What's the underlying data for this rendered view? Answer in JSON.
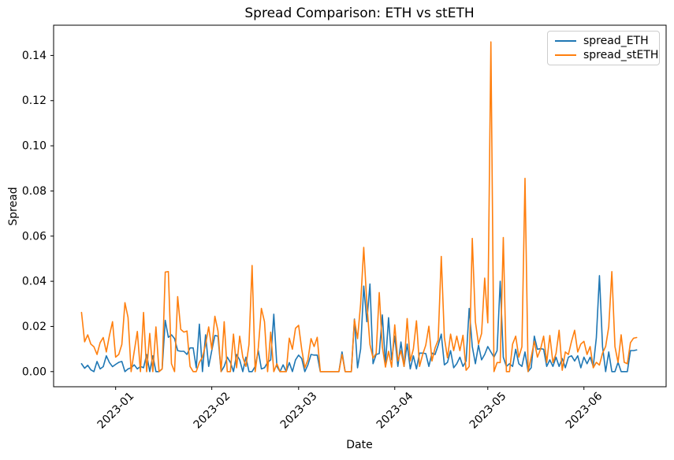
{
  "figure": {
    "background": "#ffffff",
    "spine_color": "#000000"
  },
  "chart_data": {
    "type": "line",
    "title": "Spread Comparison: ETH vs stETH",
    "xlabel": "Date",
    "ylabel": "Spread",
    "grid": false,
    "legend_position": "upper right",
    "start_date": "2022-12-21",
    "end_date": "2023-06-18",
    "x_unit": "day",
    "xlim_days": [
      -9.0,
      188.5
    ],
    "ylim": [
      -0.0067,
      0.1534
    ],
    "x_ticks": [
      {
        "label": "2023-01",
        "day": 11
      },
      {
        "label": "2023-02",
        "day": 42
      },
      {
        "label": "2023-03",
        "day": 70
      },
      {
        "label": "2023-04",
        "day": 101
      },
      {
        "label": "2023-05",
        "day": 131
      },
      {
        "label": "2023-06",
        "day": 162
      }
    ],
    "y_ticks": [
      {
        "label": "0.00",
        "value": 0.0
      },
      {
        "label": "0.02",
        "value": 0.02
      },
      {
        "label": "0.04",
        "value": 0.04
      },
      {
        "label": "0.06",
        "value": 0.06
      },
      {
        "label": "0.08",
        "value": 0.08
      },
      {
        "label": "0.10",
        "value": 0.1
      },
      {
        "label": "0.12",
        "value": 0.12
      },
      {
        "label": "0.14",
        "value": 0.14
      }
    ],
    "series": [
      {
        "name": "spread_ETH",
        "color": "#1f77b4",
        "values": [
          0.0035,
          0.0015,
          0.0028,
          0.0008,
          0.0,
          0.0045,
          0.0012,
          0.0022,
          0.007,
          0.004,
          0.0022,
          0.0032,
          0.0041,
          0.0045,
          0.0,
          0.0012,
          0.0017,
          0.003,
          0.0012,
          0.0023,
          0.0017,
          0.0076,
          0.0,
          0.007,
          0.0,
          0.0,
          0.0012,
          0.0227,
          0.0152,
          0.0163,
          0.0146,
          0.0093,
          0.009,
          0.009,
          0.0076,
          0.0105,
          0.0105,
          0.0017,
          0.021,
          0.0,
          0.0163,
          0.0023,
          0.0093,
          0.016,
          0.0157,
          0.0,
          0.0023,
          0.0064,
          0.0041,
          0.0,
          0.0076,
          0.0052,
          0.0,
          0.0064,
          0.0,
          0.0,
          0.0023,
          0.0093,
          0.0012,
          0.0017,
          0.0041,
          0.0052,
          0.0254,
          0.0023,
          0.0,
          0.003,
          0.0,
          0.004,
          0.0,
          0.0052,
          0.0073,
          0.0058,
          0.0,
          0.003,
          0.0076,
          0.0073,
          0.0073,
          0.0,
          0.0,
          0.0,
          0.0,
          0.0,
          0.0,
          0.0,
          0.0087,
          0.0,
          0.0,
          0.0,
          0.0233,
          0.0017,
          0.01,
          0.0379,
          0.0221,
          0.0388,
          0.0035,
          0.0076,
          0.008,
          0.0251,
          0.003,
          0.0239,
          0.0052,
          0.0157,
          0.0023,
          0.0131,
          0.0023,
          0.0122,
          0.0012,
          0.007,
          0.0012,
          0.0082,
          0.0082,
          0.008,
          0.0023,
          0.0082,
          0.0076,
          0.0117,
          0.0166,
          0.003,
          0.0041,
          0.0093,
          0.0017,
          0.0035,
          0.0064,
          0.0023,
          0.0047,
          0.028,
          0.0111,
          0.0035,
          0.0117,
          0.0052,
          0.0076,
          0.0111,
          0.0087,
          0.0064,
          0.0093,
          0.04,
          0.0064,
          0.0023,
          0.0035,
          0.0023,
          0.0099,
          0.0035,
          0.0023,
          0.0087,
          0.0,
          0.0017,
          0.0157,
          0.0099,
          0.0102,
          0.0099,
          0.0023,
          0.0052,
          0.0023,
          0.0064,
          0.0023,
          0.0058,
          0.0017,
          0.0064,
          0.007,
          0.0047,
          0.007,
          0.0017,
          0.0064,
          0.0035,
          0.0064,
          0.0023,
          0.015,
          0.0425,
          0.0111,
          0.0,
          0.0087,
          0.0,
          0.0,
          0.0041,
          0.0,
          0.0,
          0.0,
          0.0093,
          0.0093,
          0.0096
        ]
      },
      {
        "name": "spread_stETH",
        "color": "#ff7f0e",
        "values": [
          0.0262,
          0.0132,
          0.0163,
          0.0122,
          0.011,
          0.0076,
          0.0128,
          0.0151,
          0.0087,
          0.016,
          0.0221,
          0.0064,
          0.0076,
          0.012,
          0.0305,
          0.024,
          0.0,
          0.009,
          0.0178,
          0.0,
          0.0262,
          0.0,
          0.0169,
          0.0,
          0.0198,
          0.0,
          0.0012,
          0.0441,
          0.0443,
          0.0035,
          0.0,
          0.0332,
          0.0187,
          0.0175,
          0.018,
          0.0023,
          0.0,
          0.0,
          0.0041,
          0.0064,
          0.012,
          0.0198,
          0.0099,
          0.0245,
          0.018,
          0.0,
          0.0221,
          0.0,
          0.0,
          0.0166,
          0.0017,
          0.0157,
          0.0064,
          0.0023,
          0.012,
          0.047,
          0.0,
          0.0105,
          0.028,
          0.0221,
          0.0,
          0.0175,
          0.0,
          0.0035,
          0.0,
          0.0,
          0.0,
          0.0148,
          0.0099,
          0.0192,
          0.0205,
          0.0099,
          0.0017,
          0.0052,
          0.0146,
          0.0111,
          0.0152,
          0.0,
          0.0,
          0.0,
          0.0,
          0.0,
          0.0,
          0.0,
          0.0076,
          0.0,
          0.0,
          0.0,
          0.023,
          0.0146,
          0.03,
          0.055,
          0.03,
          0.012,
          0.006,
          0.008,
          0.035,
          0.011,
          0.002,
          0.009,
          0.002,
          0.0207,
          0.0047,
          0.0093,
          0.0023,
          0.0235,
          0.0047,
          0.01,
          0.0225,
          0.0023,
          0.0076,
          0.0117,
          0.0201,
          0.0047,
          0.0105,
          0.014,
          0.051,
          0.015,
          0.0061,
          0.0166,
          0.0093,
          0.0157,
          0.0093,
          0.0161,
          0.0006,
          0.0023,
          0.059,
          0.0221,
          0.0122,
          0.0169,
          0.0414,
          0.0216,
          0.146,
          0.0,
          0.004,
          0.004,
          0.0594,
          0.0,
          0.0,
          0.0122,
          0.0157,
          0.0064,
          0.011,
          0.0856,
          0.0,
          0.0064,
          0.0134,
          0.0064,
          0.0099,
          0.0157,
          0.0041,
          0.016,
          0.004,
          0.008,
          0.0183,
          0.0006,
          0.0087,
          0.0076,
          0.0134,
          0.0183,
          0.0087,
          0.0122,
          0.0134,
          0.0076,
          0.0111,
          0.0017,
          0.0041,
          0.0029,
          0.0082,
          0.0111,
          0.0198,
          0.0443,
          0.0111,
          0.0041,
          0.0163,
          0.0041,
          0.0035,
          0.0128,
          0.0148,
          0.0151
        ]
      }
    ]
  }
}
